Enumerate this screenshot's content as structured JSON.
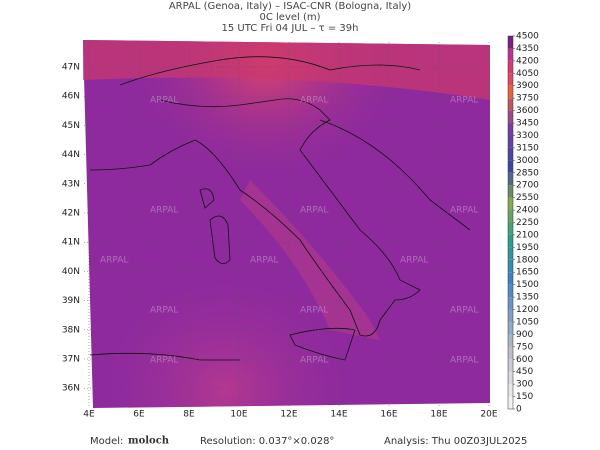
{
  "header": {
    "line1": "ARPAL (Genoa, Italy)  –  ISAC-CNR (Bologna, Italy)",
    "line2": "0C level (m)",
    "line3": "15 UTC Fri 04 JUL  –  τ = 39h"
  },
  "map": {
    "lat_labels": [
      "47N",
      "46N",
      "45N",
      "44N",
      "43N",
      "42N",
      "41N",
      "40N",
      "39N",
      "38N",
      "37N",
      "36N"
    ],
    "lon_labels": [
      "4E",
      "6E",
      "8E",
      "10E",
      "12E",
      "14E",
      "16E",
      "18E",
      "20E"
    ],
    "watermark": "ARPAL"
  },
  "colorbar": {
    "levels": [
      0,
      150,
      300,
      450,
      600,
      750,
      900,
      1050,
      1200,
      1350,
      1500,
      1650,
      1800,
      1950,
      2100,
      2250,
      2400,
      2550,
      2700,
      2850,
      3000,
      3150,
      3300,
      3450,
      3600,
      3750,
      3900,
      4050,
      4200,
      4350,
      4500
    ]
  },
  "footer": {
    "model_label": "Model:",
    "model": "moloch",
    "resolution": "Resolution: 0.037°×0.028°",
    "analysis": "Analysis: Thu 00Z03JUL2025"
  }
}
